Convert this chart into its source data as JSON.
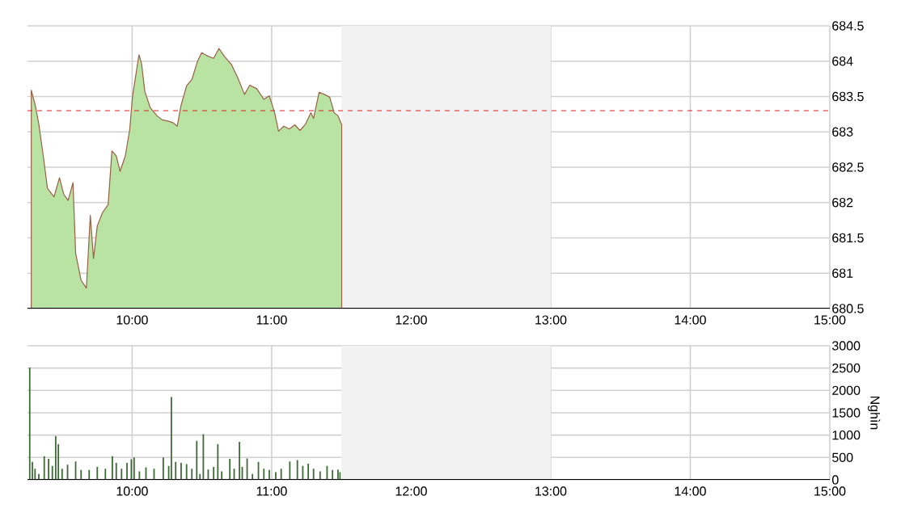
{
  "chart_data": [
    {
      "type": "area",
      "color": "#b9e3a3",
      "x": [
        9.277,
        9.305,
        9.331,
        9.363,
        9.393,
        9.44,
        9.479,
        9.509,
        9.541,
        9.576,
        9.595,
        9.634,
        9.672,
        9.7,
        9.723,
        9.75,
        9.788,
        9.828,
        9.855,
        9.886,
        9.913,
        9.951,
        9.983,
        10.002,
        10.029,
        10.049,
        10.067,
        10.091,
        10.13,
        10.177,
        10.215,
        10.262,
        10.293,
        10.323,
        10.351,
        10.39,
        10.428,
        10.467,
        10.498,
        10.544,
        10.584,
        10.622,
        10.661,
        10.712,
        10.758,
        10.805,
        10.843,
        10.893,
        10.944,
        10.983,
        11.021,
        11.049,
        11.087,
        11.126,
        11.166,
        11.203,
        11.243,
        11.281,
        11.3,
        11.34,
        11.378,
        11.416,
        11.448,
        11.474,
        11.502
      ],
      "values": [
        683.59,
        683.38,
        683.11,
        682.66,
        682.2,
        682.08,
        682.35,
        682.12,
        682.03,
        682.28,
        681.28,
        680.9,
        680.79,
        681.82,
        681.21,
        681.67,
        681.86,
        681.97,
        682.73,
        682.66,
        682.44,
        682.66,
        683.04,
        683.49,
        683.84,
        684.09,
        683.97,
        683.57,
        683.34,
        683.23,
        683.17,
        683.15,
        683.13,
        683.08,
        683.38,
        683.65,
        683.74,
        683.99,
        684.12,
        684.07,
        684.04,
        684.18,
        684.07,
        683.95,
        683.76,
        683.53,
        683.66,
        683.61,
        683.46,
        683.51,
        683.27,
        683.01,
        683.08,
        683.04,
        683.1,
        683.02,
        683.11,
        683.27,
        683.19,
        683.56,
        683.53,
        683.49,
        683.27,
        683.23,
        683.1
      ],
      "xlim": [
        9.25,
        15
      ],
      "ylim": [
        680.5,
        684.5
      ],
      "xticks": [
        {
          "value": 10,
          "label": "10:00"
        },
        {
          "value": 11,
          "label": "11:00"
        },
        {
          "value": 12,
          "label": "12:00"
        },
        {
          "value": 13,
          "label": "13:00"
        },
        {
          "value": 14,
          "label": "14:00"
        },
        {
          "value": 15,
          "label": "15:00"
        }
      ],
      "yticks": [
        680.5,
        681,
        681.5,
        682,
        682.5,
        683,
        683.5,
        684,
        684.5
      ],
      "grid": true,
      "bands": [
        {
          "axis": "x",
          "from": 11.5,
          "to": 13,
          "color": "#f2f2f2"
        }
      ],
      "ref_lines": [
        {
          "axis": "y",
          "value": 683.3,
          "color": "#e02020",
          "line_style": "dashed"
        }
      ]
    },
    {
      "type": "bar",
      "color": "#3d6b35",
      "ylabel": "Nghìn",
      "x": [
        9.266,
        9.285,
        9.304,
        9.331,
        9.37,
        9.401,
        9.428,
        9.452,
        9.471,
        9.498,
        9.537,
        9.595,
        9.634,
        9.692,
        9.75,
        9.808,
        9.858,
        9.886,
        9.924,
        9.963,
        9.994,
        10.014,
        10.052,
        10.099,
        10.157,
        10.223,
        10.262,
        10.281,
        10.312,
        10.351,
        10.39,
        10.428,
        10.463,
        10.486,
        10.51,
        10.545,
        10.584,
        10.614,
        10.642,
        10.7,
        10.731,
        10.769,
        10.789,
        10.824,
        10.862,
        10.905,
        10.944,
        10.983,
        11.029,
        11.068,
        11.13,
        11.184,
        11.223,
        11.262,
        11.3,
        11.347,
        11.397,
        11.436,
        11.475,
        11.49
      ],
      "values": [
        2510,
        400,
        250,
        130,
        530,
        470,
        310,
        980,
        800,
        250,
        340,
        410,
        220,
        220,
        290,
        250,
        530,
        380,
        250,
        380,
        460,
        500,
        190,
        280,
        250,
        500,
        310,
        1850,
        400,
        380,
        350,
        250,
        870,
        130,
        1020,
        230,
        290,
        800,
        190,
        470,
        250,
        850,
        290,
        480,
        130,
        400,
        250,
        220,
        170,
        250,
        410,
        440,
        310,
        360,
        250,
        190,
        310,
        220,
        230,
        170
      ],
      "xlim": [
        9.25,
        15
      ],
      "ylim": [
        0,
        3000
      ],
      "xticks": [
        {
          "value": 10,
          "label": "10:00"
        },
        {
          "value": 11,
          "label": "11:00"
        },
        {
          "value": 12,
          "label": "12:00"
        },
        {
          "value": 13,
          "label": "13:00"
        },
        {
          "value": 14,
          "label": "14:00"
        },
        {
          "value": 15,
          "label": "15:00"
        }
      ],
      "yticks": [
        0,
        500,
        1000,
        1500,
        2000,
        2500,
        3000
      ],
      "grid": true,
      "bands": [
        {
          "axis": "x",
          "from": 11.5,
          "to": 13,
          "color": "#f2f2f2"
        }
      ]
    }
  ]
}
